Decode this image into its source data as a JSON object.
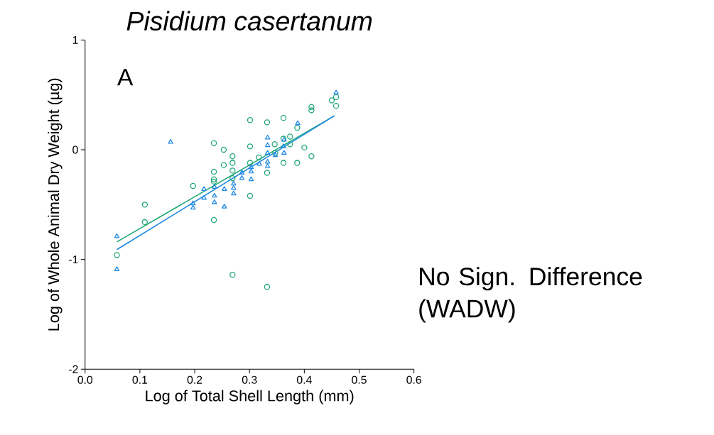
{
  "chart_data": {
    "type": "scatter",
    "title": "*Pisidium casertanum*",
    "xlabel": "Log of Total Shell Length (mm)",
    "ylabel": "Log of Whole Animal Dry Weight (µg)",
    "annotations": [
      "A",
      "No Sign. Difference (WADW)"
    ],
    "xlim": [
      0,
      0.6
    ],
    "ylim": [
      -2,
      1
    ],
    "xticks": [
      {
        "value": 0,
        "label": "0.0"
      },
      {
        "value": 0.1,
        "label": "0.1"
      },
      {
        "value": 0.2,
        "label": "0.2"
      },
      {
        "value": 0.3,
        "label": "0.3"
      },
      {
        "value": 0.4,
        "label": "0.4"
      },
      {
        "value": 0.5,
        "label": "0.5"
      },
      {
        "value": 0.6,
        "label": "0.6"
      }
    ],
    "yticks": [
      -2,
      -1,
      0,
      1
    ],
    "grid": false,
    "series": [
      {
        "marker": "circle",
        "color": "#1fa774",
        "x": [
          0.058,
          0.109,
          0.109,
          0.197,
          0.235,
          0.235,
          0.235,
          0.235,
          0.235,
          0.253,
          0.253,
          0.269,
          0.269,
          0.269,
          0.269,
          0.269,
          0.301,
          0.301,
          0.301,
          0.301,
          0.317,
          0.332,
          0.332,
          0.332,
          0.346,
          0.347,
          0.362,
          0.362,
          0.362,
          0.374,
          0.374,
          0.387,
          0.387,
          0.4,
          0.413,
          0.413,
          0.413,
          0.45,
          0.458,
          0.458
        ],
        "values": [
          -0.96,
          -0.5,
          -0.66,
          -0.33,
          0.06,
          -0.2,
          -0.27,
          -0.29,
          -0.64,
          0,
          -0.14,
          -0.06,
          -0.12,
          -0.19,
          -0.26,
          -1.14,
          0.27,
          0.03,
          -0.12,
          -0.42,
          -0.07,
          0.25,
          -0.21,
          -1.25,
          0.05,
          -0.03,
          0.29,
          0.1,
          -0.12,
          0.12,
          0.05,
          0.2,
          -0.12,
          0.02,
          0.39,
          0.36,
          -0.06,
          0.45,
          0.4,
          0.48
        ]
      },
      {
        "marker": "triangle",
        "color": "#1e88e5",
        "x": [
          0.058,
          0.058,
          0.156,
          0.197,
          0.197,
          0.217,
          0.217,
          0.236,
          0.236,
          0.236,
          0.254,
          0.254,
          0.271,
          0.271,
          0.271,
          0.286,
          0.286,
          0.303,
          0.303,
          0.303,
          0.318,
          0.333,
          0.333,
          0.333,
          0.333,
          0.333,
          0.347,
          0.363,
          0.362,
          0.363,
          0.388,
          0.458
        ],
        "values": [
          -0.79,
          -1.09,
          0.07,
          -0.53,
          -0.49,
          -0.36,
          -0.44,
          -0.34,
          -0.42,
          -0.48,
          -0.52,
          -0.36,
          -0.31,
          -0.35,
          -0.4,
          -0.26,
          -0.21,
          -0.27,
          -0.2,
          -0.16,
          -0.13,
          0.11,
          0.04,
          -0.03,
          -0.11,
          -0.15,
          -0.05,
          -0.03,
          0.03,
          0.09,
          0.24,
          0.52
        ]
      },
      {
        "type": "line",
        "marker": "none",
        "color": "#1fa774",
        "x": [
          0.058,
          0.455
        ],
        "values": [
          -0.84,
          0.31
        ]
      },
      {
        "type": "line",
        "marker": "none",
        "color": "#1e88e5",
        "x": [
          0.058,
          0.455
        ],
        "values": [
          -0.91,
          0.31
        ]
      }
    ]
  }
}
